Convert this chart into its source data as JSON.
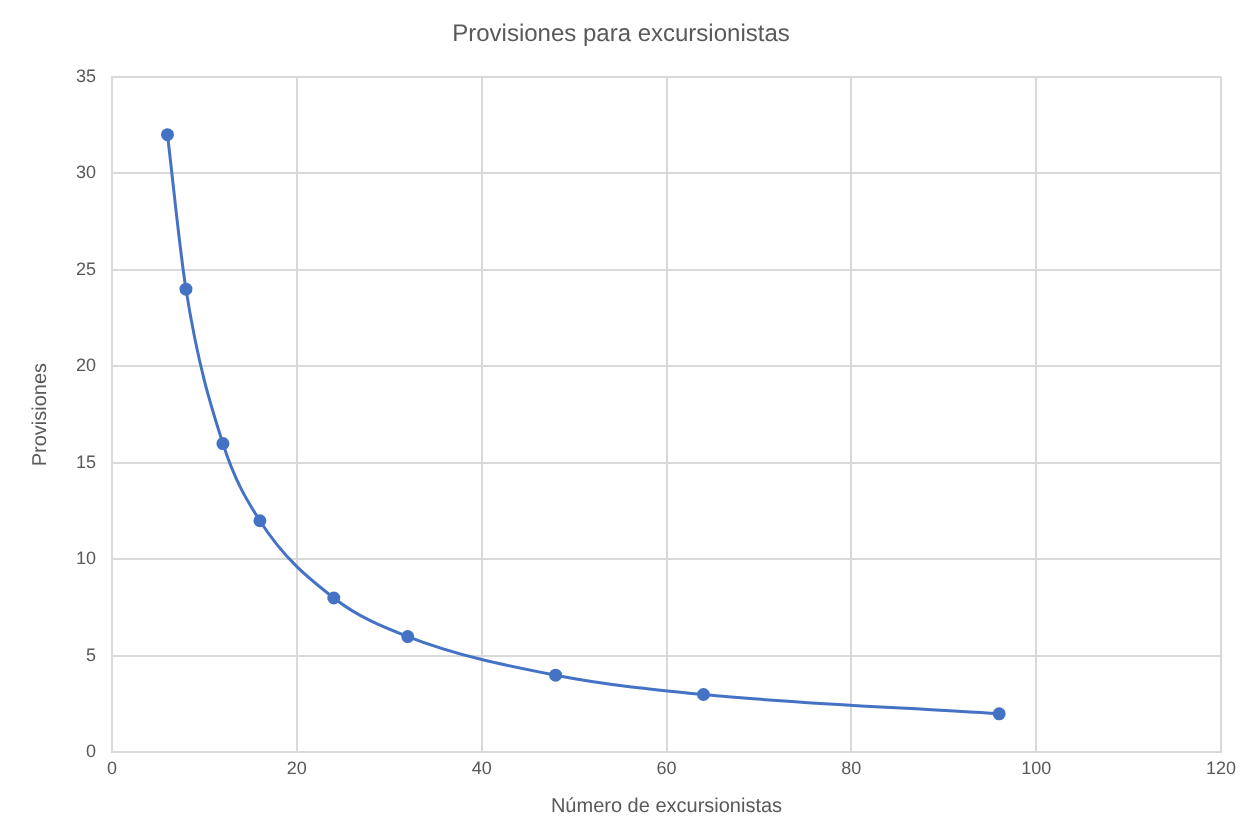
{
  "chart_data": {
    "type": "line",
    "title": "Provisiones para excursionistas",
    "xlabel": "Número de excursionistas",
    "ylabel": "Provisiones",
    "x": [
      6,
      8,
      12,
      16,
      24,
      32,
      48,
      64,
      96
    ],
    "series": [
      {
        "color": "#4472c4",
        "values": [
          32,
          24,
          16,
          12,
          8,
          6,
          4,
          3,
          2
        ]
      }
    ],
    "xlim": [
      0,
      120
    ],
    "xticks": [
      0,
      20,
      40,
      60,
      80,
      100,
      120
    ],
    "ylim": [
      0,
      35
    ],
    "yticks": [
      0,
      5,
      10,
      15,
      20,
      25,
      30,
      35
    ],
    "grid": true,
    "marker": "circle",
    "line_style": "solid",
    "legend": false
  }
}
